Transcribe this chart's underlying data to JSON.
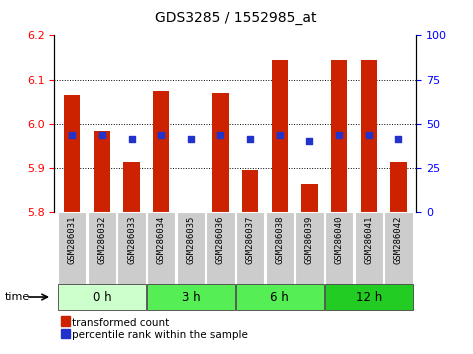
{
  "title": "GDS3285 / 1552985_at",
  "samples": [
    "GSM286031",
    "GSM286032",
    "GSM286033",
    "GSM286034",
    "GSM286035",
    "GSM286036",
    "GSM286037",
    "GSM286038",
    "GSM286039",
    "GSM286040",
    "GSM286041",
    "GSM286042"
  ],
  "bar_tops": [
    6.065,
    5.985,
    5.915,
    6.075,
    5.8,
    6.07,
    5.895,
    6.145,
    5.865,
    6.145,
    6.145,
    5.915
  ],
  "bar_bottom": 5.8,
  "blue_y": [
    5.975,
    5.975,
    5.965,
    5.975,
    5.965,
    5.975,
    5.965,
    5.975,
    5.962,
    5.975,
    5.975,
    5.965
  ],
  "ylim": [
    5.8,
    6.2
  ],
  "yticks_left": [
    5.8,
    5.9,
    6.0,
    6.1,
    6.2
  ],
  "yticks_right_vals": [
    0,
    25,
    50,
    75,
    100
  ],
  "bar_color": "#cc2200",
  "blue_color": "#2233cc",
  "group_defs": [
    {
      "label": "0 h",
      "start": 0,
      "end": 2,
      "color": "#ccffcc"
    },
    {
      "label": "3 h",
      "start": 3,
      "end": 5,
      "color": "#55ee55"
    },
    {
      "label": "6 h",
      "start": 6,
      "end": 8,
      "color": "#55ee55"
    },
    {
      "label": "12 h",
      "start": 9,
      "end": 11,
      "color": "#22cc22"
    }
  ],
  "legend_red": "transformed count",
  "legend_blue": "percentile rank within the sample",
  "title_fontsize": 10,
  "tick_fontsize": 8,
  "sample_label_fontsize": 6.5,
  "bg_sample": "#cccccc"
}
